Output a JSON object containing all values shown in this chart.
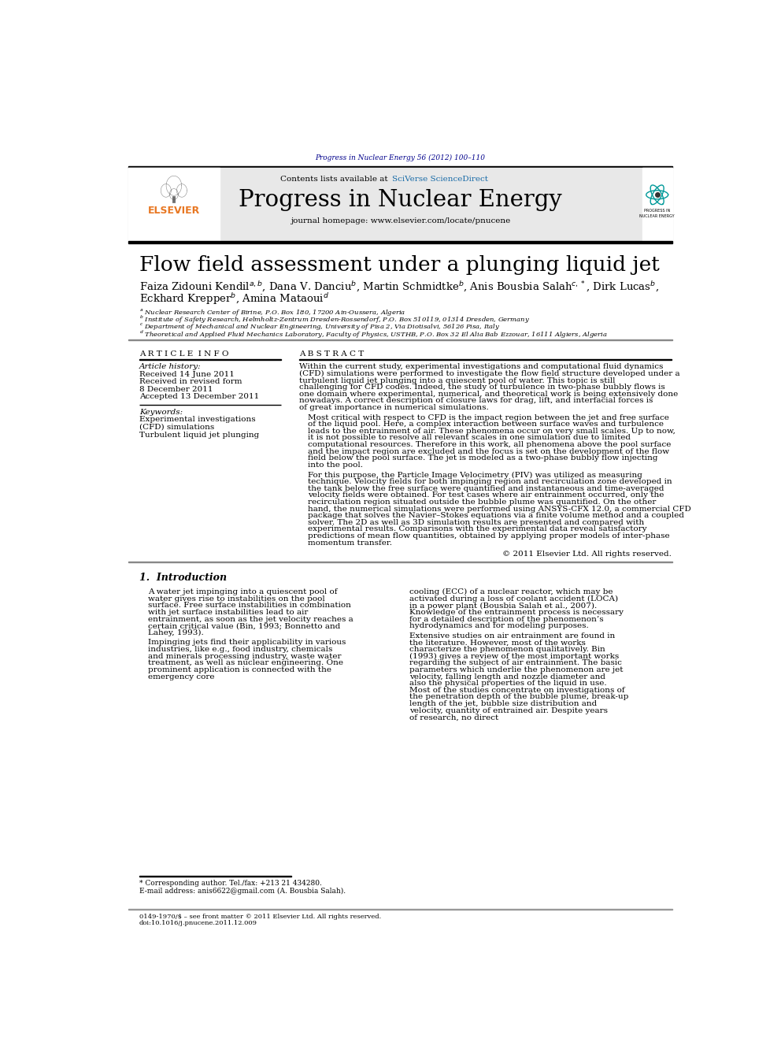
{
  "journal_ref": "Progress in Nuclear Energy 56 (2012) 100–110",
  "journal_ref_color": "#00008B",
  "contents_text": "Contents lists available at ",
  "sciverse_text": "SciVerse ScienceDirect",
  "sciverse_color": "#1a6ca8",
  "journal_title": "Progress in Nuclear Energy",
  "journal_homepage": "journal homepage: www.elsevier.com/locate/pnucene",
  "paper_title": "Flow field assessment under a plunging liquid jet",
  "authors_line1": "Faiza Zidouni Kendil$^{a,b}$, Dana V. Danciu$^b$, Martin Schmidtke$^b$, Anis Bousbia Salah$^{c,*}$, Dirk Lucas$^b$,",
  "authors_line2": "Eckhard Krepper$^b$, Amina Mataoui$^d$",
  "affiliations": [
    "$^a$ Nuclear Research Center of Birine, P.O. Box 180, 17200 Ain-Oussera, Algeria",
    "$^b$ Institute of Safety Research, Helmholtz-Zentrum Dresden-Rossendorf, P.O. Box 510119, 01314 Dresden, Germany",
    "$^c$ Department of Mechanical and Nuclear Engineering, University of Pisa 2, Via Diotisalvi, 56126 Pisa, Italy",
    "$^d$ Theoretical and Applied Fluid Mechanics Laboratory, Faculty of Physics, USTHB, P.O. Box 32 El Alia Bab Ezzouar, 16111 Algiers, Algeria"
  ],
  "article_info_title": "A R T I C L E  I N F O",
  "article_history_label": "Article history:",
  "article_history": [
    "Received 14 June 2011",
    "Received in revised form",
    "8 December 2011",
    "Accepted 13 December 2011"
  ],
  "keywords_label": "Keywords:",
  "keywords": [
    "Experimental investigations",
    "(CFD) simulations",
    "Turbulent liquid jet plunging"
  ],
  "abstract_title": "A B S T R A C T",
  "abstract_p1": "Within the current study, experimental investigations and computational fluid dynamics (CFD) simulations were performed to investigate the flow field structure developed under a turbulent liquid jet plunging into a quiescent pool of water. This topic is still challenging for CFD codes. Indeed, the study of turbulence in two-phase bubbly flows is one domain where experimental, numerical, and theoretical work is being extensively done nowadays. A correct description of closure laws for drag, lift, and interfacial forces is of great importance in numerical simulations.",
  "abstract_p2": "Most critical with respect to CFD is the impact region between the jet and free surface of the liquid pool. Here, a complex interaction between surface waves and turbulence leads to the entrainment of air. These phenomena occur on very small scales. Up to now, it is not possible to resolve all relevant scales in one simulation due to limited computational resources. Therefore in this work, all phenomena above the pool surface and the impact region are excluded and the focus is set on the development of the flow field below the pool surface. The jet is modeled as a two-phase bubbly flow injecting into the pool.",
  "abstract_p3": "For this purpose, the Particle Image Velocimetry (PIV) was utilized as measuring technique. Velocity fields for both impinging region and recirculation zone developed in the tank below the free surface were quantified and instantaneous and time-averaged velocity fields were obtained. For test cases where air entrainment occurred, only the recirculation region situated outside the bubble plume was quantified. On the other hand, the numerical simulations were performed using ANSYS-CFX 12.0, a commercial CFD package that solves the Navier–Stokes equations via a finite volume method and a coupled solver. The 2D as well as 3D simulation results are presented and compared with experimental results. Comparisons with the experimental data reveal satisfactory predictions of mean flow quantities, obtained by applying proper models of inter-phase momentum transfer.",
  "copyright_line": "© 2011 Elsevier Ltd. All rights reserved.",
  "section1_title": "1.  Introduction",
  "intro_p1": "A water jet impinging into a quiescent pool of water gives rise to instabilities on the pool surface. Free surface instabilities in combination with jet surface instabilities lead to air entrainment, as soon as the jet velocity reaches a certain critical value (Bin, 1993; Bonnetto and Lahey, 1993).",
  "intro_p2": "Impinging jets find their applicability in various industries, like e.g., food industry, chemicals and minerals processing industry, waste water treatment, as well as nuclear engineering. One prominent application is connected with the emergency core",
  "right_col_p1": "cooling (ECC) of a nuclear reactor, which may be activated during a loss of coolant accident (LOCA) in a power plant (Bousbia Salah et al., 2007). Knowledge of the entrainment process is necessary for a detailed description of the phenomenon’s hydrodynamics and for modeling purposes.",
  "right_col_p2": "Extensive studies on air entrainment are found in the literature. However, most of the works characterize the phenomenon qualitatively. Bin (1993) gives a review of the most important works regarding the subject of air entrainment. The basic parameters which underlie the phenomenon are jet velocity, falling length and nozzle diameter and also the physical properties of the liquid in use. Most of the studies concentrate on investigations of the penetration depth of the bubble plume, break-up length of the jet, bubble size distribution and velocity, quantity of entrained air. Despite years of research, no direct",
  "footnote_star": "* Corresponding author. Tel./fax: +213 21 434280.",
  "footnote_email": "E-mail address: anis6622@gmail.com (A. Bousbia Salah).",
  "footer_line1": "0149-1970/$ – see front matter © 2011 Elsevier Ltd. All rights reserved.",
  "footer_line2": "doi:10.1016/j.pnucene.2011.12.009",
  "bg_color": "#ffffff",
  "header_bg": "#e8e8e8",
  "text_color": "#000000",
  "blue_color": "#1a6ca8",
  "dark_blue": "#00008B",
  "orange_color": "#E87722",
  "elsevier_text": "ELSEVIER",
  "progress_logo_text": "PROGRESS IN\nNUCLEAR ENERGY"
}
